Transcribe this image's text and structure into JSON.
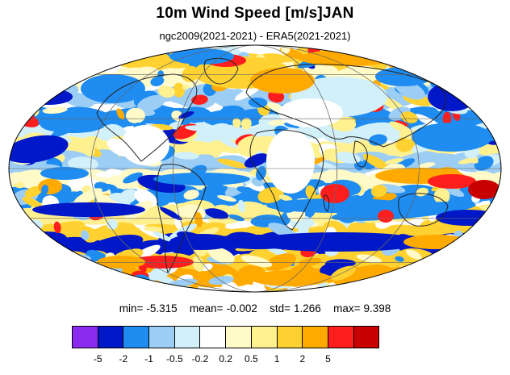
{
  "title": "10m Wind Speed [m/s]JAN",
  "subtitle": "ngc2009(2021-2021) - ERA5(2021-2021)",
  "projection": "mollweide",
  "stats": {
    "min_label": "min=",
    "min": "-5.315",
    "mean_label": "mean=",
    "mean": "-0.002",
    "std_label": "std=",
    "std": "1.266",
    "max_label": "max=",
    "max": "9.398"
  },
  "colorbar": {
    "colors": [
      "#8c2bf0",
      "#0018c8",
      "#1e8cf0",
      "#9ccdf5",
      "#d2f0fa",
      "#ffffff",
      "#fffac8",
      "#fff090",
      "#ffd232",
      "#ffaa00",
      "#ff1e1e",
      "#c80000"
    ],
    "labels": [
      "-5",
      "-2",
      "-1",
      "-0.5",
      "-0.2",
      "0.2",
      "0.5",
      "1",
      "2",
      "5"
    ]
  }
}
